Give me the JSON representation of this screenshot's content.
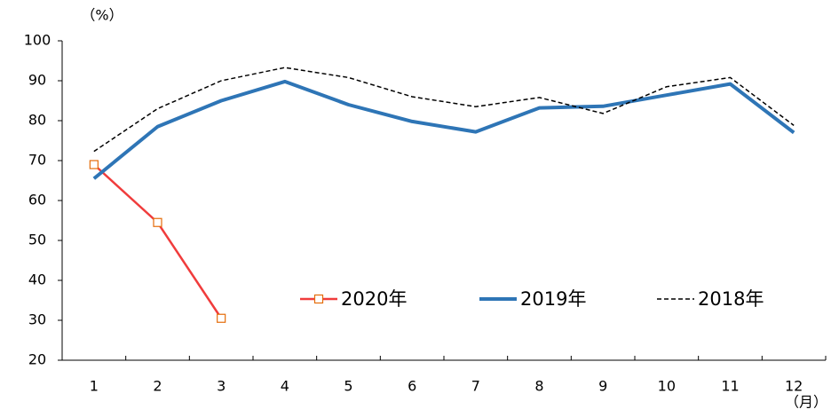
{
  "chart_data": {
    "type": "line",
    "y_label": "（%）",
    "x_label": "（月）",
    "categories": [
      "1",
      "2",
      "3",
      "4",
      "5",
      "6",
      "7",
      "8",
      "9",
      "10",
      "11",
      "12"
    ],
    "series": [
      {
        "name": "2020年",
        "color": "#f03c3c",
        "marker": "square",
        "marker_color": "#e46c0a",
        "line_style": "solid",
        "values": [
          69,
          54.5,
          30.5,
          null,
          null,
          null,
          null,
          null,
          null,
          null,
          null,
          null
        ]
      },
      {
        "name": "2019年",
        "color": "#2e75b6",
        "line_style": "thick",
        "values": [
          65.5,
          78.5,
          85,
          89.8,
          84,
          79.8,
          77.2,
          83.2,
          83.6,
          86.4,
          89.2,
          77
        ]
      },
      {
        "name": "2018年",
        "color": "#000000",
        "line_style": "dashed",
        "values": [
          72.3,
          83,
          90,
          93.3,
          90.8,
          86,
          83.5,
          85.8,
          81.8,
          88.5,
          90.8,
          78.8
        ]
      }
    ],
    "ylim": [
      20,
      100
    ],
    "yticks": [
      20,
      30,
      40,
      50,
      60,
      70,
      80,
      90,
      100
    ],
    "grid": false
  }
}
